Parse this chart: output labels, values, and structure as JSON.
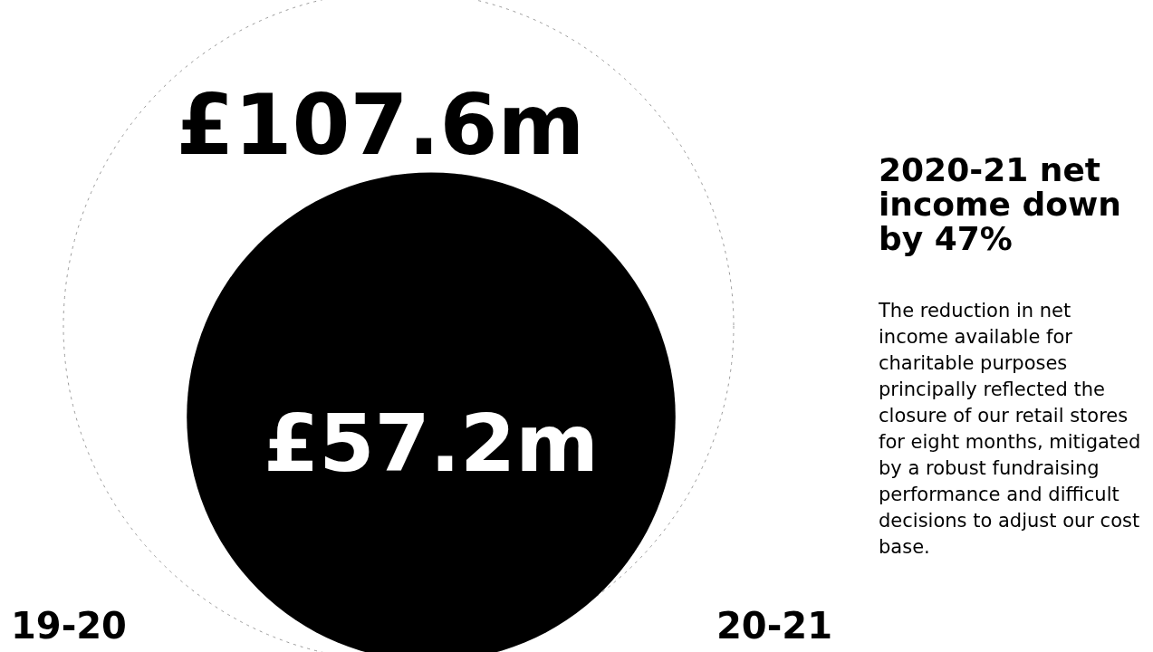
{
  "chart_data": {
    "type": "other",
    "title": "2020-21 net income down by 47%",
    "subtitle": "The reduction in net income available for charitable purposes principally reflected the closure of our retail stores for eight months, mitigated by a robust fundraising performance and difficult decisions to adjust our cost base.",
    "categories": [
      "19-20",
      "20-21"
    ],
    "values": [
      107.6,
      57.2
    ],
    "value_labels": [
      "£107.6m",
      "£57.2m"
    ],
    "colors": [
      "#ffffff",
      "#000000"
    ]
  }
}
